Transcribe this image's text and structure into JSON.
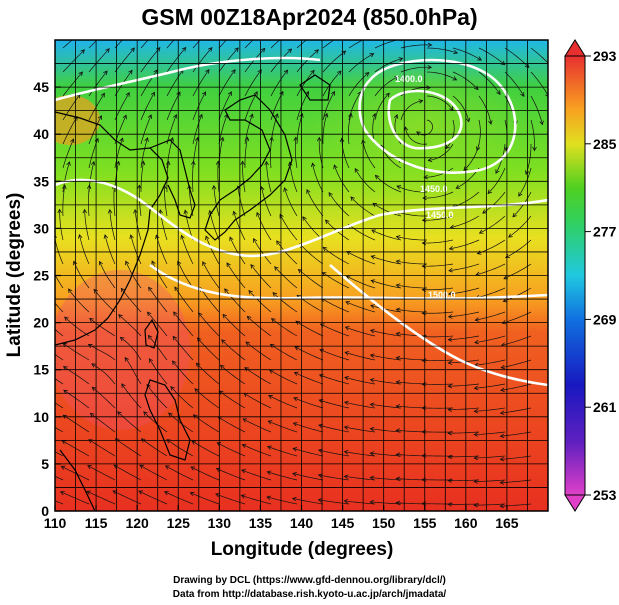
{
  "title": "GSM 00Z18Apr2024 (850.0hPa)",
  "credits": {
    "line1": "Drawing by DCL (https://www.gfd-dennou.org/library/dcl/)",
    "line2": "Data from http://database.rish.kyoto-u.ac.jp/arch/jmadata/"
  },
  "axes": {
    "xlabel": "Longitude (degrees)",
    "ylabel": "Latitude  (degrees)",
    "xlim": [
      110,
      170
    ],
    "ylim": [
      0,
      50
    ],
    "xticks": [
      "110",
      "115",
      "120",
      "125",
      "130",
      "135",
      "140",
      "145",
      "150",
      "155",
      "160",
      "165"
    ],
    "yticks": [
      "0",
      "5",
      "10",
      "15",
      "20",
      "25",
      "30",
      "35",
      "40",
      "45"
    ],
    "grid": true
  },
  "colorbar": {
    "ticks": [
      "253",
      "261",
      "269",
      "277",
      "285",
      "293"
    ],
    "range": [
      253,
      293
    ],
    "colors": [
      "#e040c8",
      "#1818c0",
      "#20a8f0",
      "#20d080",
      "#50d020",
      "#f8e020",
      "#f89020",
      "#e84030"
    ]
  },
  "contours": {
    "labels": [
      "1400.0",
      "1450.0",
      "1450.0",
      "1500.0"
    ],
    "color": "#ffffff"
  },
  "field": {
    "variable": "temperature",
    "units": "K",
    "overlay": "streamlines",
    "warm_color": "#e83020",
    "mid_color": "#f8c020",
    "cool_color": "#40d020",
    "cold_color": "#30c8e0"
  }
}
